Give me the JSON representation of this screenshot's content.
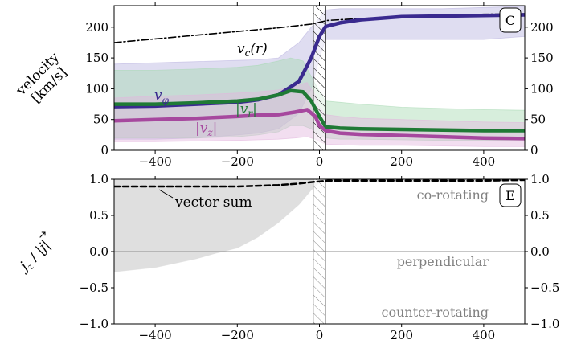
{
  "chart_data": [
    {
      "type": "line",
      "panel_label": "C",
      "ylabel": [
        "velocity",
        "[km/s]"
      ],
      "xlim": [
        -500,
        500
      ],
      "ylim": [
        0,
        235
      ],
      "xticks": [
        -400,
        -200,
        0,
        200,
        400
      ],
      "yticks": [
        0,
        50,
        100,
        150,
        200
      ],
      "grid": false,
      "shaded_region_x": [
        -15,
        15
      ],
      "series": [
        {
          "name": "v_c(r)",
          "label_main": "v",
          "label_sub": "c",
          "label_tail": "(r)",
          "color": "#000000",
          "style": "dash-dot",
          "x": [
            -500,
            -400,
            -300,
            -200,
            -100,
            -20,
            0,
            20,
            100,
            200,
            300,
            400,
            500
          ],
          "y": [
            175,
            181,
            187,
            193,
            199,
            205,
            208,
            211,
            214,
            217,
            219,
            221,
            222
          ]
        },
        {
          "name": "v_phi",
          "label_main": "v",
          "label_sub": "φ",
          "color": "#3a2a8f",
          "band_color": "#b9b3e0",
          "x": [
            -500,
            -400,
            -300,
            -200,
            -150,
            -100,
            -50,
            -20,
            0,
            15,
            50,
            100,
            200,
            300,
            400,
            500
          ],
          "y": [
            71,
            72,
            75,
            78,
            82,
            90,
            112,
            150,
            185,
            201,
            207,
            212,
            217,
            218,
            219,
            220
          ],
          "band_low": [
            18,
            18,
            20,
            25,
            28,
            35,
            60,
            100,
            150,
            180,
            180,
            180,
            180,
            180,
            180,
            185
          ],
          "band_high": [
            140,
            142,
            144,
            146,
            147,
            150,
            175,
            200,
            215,
            228,
            230,
            230,
            230,
            230,
            232,
            234
          ]
        },
        {
          "name": "|v_r|",
          "label_main": "|v",
          "label_sub": "r",
          "label_tail": "|",
          "color": "#1f7a35",
          "band_color": "#a7d9b2",
          "x": [
            -500,
            -400,
            -300,
            -200,
            -150,
            -100,
            -70,
            -40,
            -20,
            0,
            15,
            50,
            100,
            200,
            300,
            400,
            500
          ],
          "y": [
            75,
            75,
            77,
            80,
            83,
            90,
            97,
            95,
            80,
            55,
            38,
            36,
            35,
            34,
            33,
            32,
            32
          ],
          "band_low": [
            20,
            20,
            20,
            22,
            25,
            30,
            40,
            40,
            35,
            25,
            20,
            18,
            18,
            17,
            16,
            16,
            15
          ],
          "band_high": [
            130,
            130,
            132,
            135,
            138,
            145,
            150,
            145,
            120,
            95,
            80,
            78,
            75,
            70,
            68,
            66,
            65
          ]
        },
        {
          "name": "|v_z|",
          "label_main": "|v",
          "label_sub": "z",
          "label_tail": "|",
          "color": "#a6489e",
          "band_color": "#e2b5dd",
          "x": [
            -500,
            -400,
            -300,
            -200,
            -150,
            -100,
            -60,
            -30,
            -10,
            0,
            15,
            50,
            100,
            200,
            300,
            400,
            500
          ],
          "y": [
            48,
            50,
            52,
            55,
            57,
            58,
            62,
            66,
            55,
            40,
            32,
            28,
            26,
            24,
            22,
            20,
            19
          ],
          "band_low": [
            14,
            14,
            15,
            16,
            17,
            18,
            20,
            22,
            18,
            14,
            10,
            9,
            8,
            8,
            7,
            6,
            6
          ],
          "band_high": [
            85,
            88,
            90,
            93,
            95,
            98,
            105,
            110,
            90,
            70,
            58,
            55,
            52,
            50,
            48,
            46,
            45
          ]
        }
      ]
    },
    {
      "type": "line",
      "panel_label": "E",
      "ylabel_parts": [
        "j",
        "z",
        " / |",
        "j",
        "|"
      ],
      "xlim": [
        -500,
        500
      ],
      "ylim": [
        -1.0,
        1.0
      ],
      "xticks": [
        -400,
        -200,
        0,
        200,
        400
      ],
      "yticks": [
        -1.0,
        -0.5,
        0.0,
        0.5,
        1.0
      ],
      "ytick_labels": [
        "−1.0",
        "−0.5",
        "0.0",
        "0.5",
        "1.0"
      ],
      "grid": false,
      "hline": 0.0,
      "shaded_region_x": [
        -15,
        15
      ],
      "annotations": [
        "co-rotating",
        "perpendicular",
        "counter-rotating"
      ],
      "series": [
        {
          "name": "vector sum",
          "color": "#000000",
          "style": "dashed",
          "band_color": "#dcdcdc",
          "x": [
            -500,
            -400,
            -300,
            -250,
            -200,
            -150,
            -100,
            -50,
            -20,
            0,
            20,
            100,
            200,
            300,
            400,
            500
          ],
          "y": [
            0.9,
            0.9,
            0.9,
            0.9,
            0.9,
            0.91,
            0.92,
            0.94,
            0.96,
            0.97,
            0.98,
            0.98,
            0.98,
            0.98,
            0.98,
            0.99
          ],
          "band_low": [
            -0.28,
            -0.22,
            -0.1,
            -0.02,
            0.05,
            0.2,
            0.4,
            0.65,
            0.85,
            0.95,
            0.97,
            0.97,
            0.97,
            0.97,
            0.97,
            0.98
          ],
          "band_high": [
            1.0,
            1.0,
            1.0,
            1.0,
            1.0,
            1.0,
            1.0,
            1.0,
            1.0,
            1.0,
            1.0,
            1.0,
            1.0,
            1.0,
            1.0,
            1.0
          ]
        }
      ]
    }
  ]
}
